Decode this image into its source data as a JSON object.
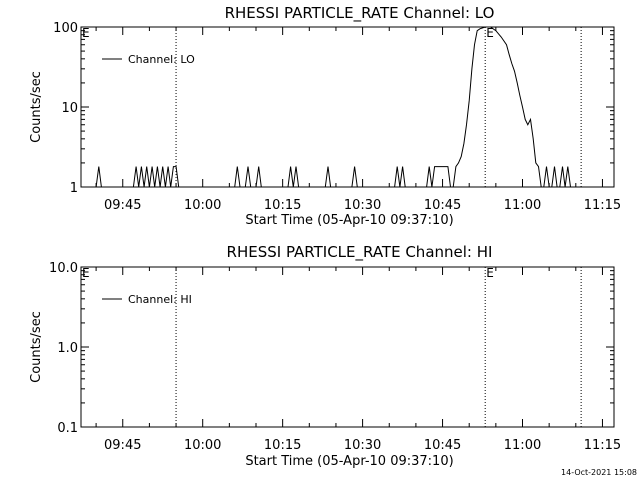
{
  "footer": {
    "generated": "14-Oct-2021 15:08"
  },
  "chart_data": [
    {
      "type": "line",
      "title": "RHESSI PARTICLE_RATE Channel: LO",
      "xlabel": "Start Time (05-Apr-10 09:37:10)",
      "ylabel": "Counts/sec",
      "y_scale": "log",
      "ylim": [
        1,
        100
      ],
      "y_ticks": [
        1,
        10,
        100
      ],
      "y_tick_labels": [
        "1",
        "10",
        "100"
      ],
      "xlim": [
        "09:37:10",
        "11:17:10"
      ],
      "x_ticks": [
        "09:45",
        "10:00",
        "10:15",
        "10:30",
        "10:45",
        "11:00",
        "11:15"
      ],
      "legend": {
        "label": "Channel: LO",
        "position": "top-left"
      },
      "markers": [
        {
          "label": "E",
          "time": "09:37:10",
          "line": false
        },
        {
          "label": "",
          "time": "09:55:00",
          "line": true
        },
        {
          "label": "E",
          "time": "10:53:00",
          "line": true
        },
        {
          "label": "",
          "time": "11:11:00",
          "line": true
        }
      ],
      "series": [
        {
          "x": [
            "09:40:00",
            "09:40:30",
            "09:41:00",
            "09:47:00",
            "09:47:30",
            "09:48:00",
            "09:48:30",
            "09:49:00",
            "09:49:30",
            "09:50:00",
            "09:50:30",
            "09:51:00",
            "09:51:30",
            "09:52:00",
            "09:52:30",
            "09:53:00",
            "09:53:30",
            "09:54:00",
            "09:54:30",
            "09:55:00",
            "09:55:30",
            "10:06:00",
            "10:06:30",
            "10:07:00",
            "10:08:00",
            "10:08:30",
            "10:09:00",
            "10:10:00",
            "10:10:30",
            "10:11:00",
            "10:16:00",
            "10:16:30",
            "10:17:00",
            "10:17:30",
            "10:18:00",
            "10:23:00",
            "10:23:30",
            "10:24:00",
            "10:28:00",
            "10:28:30",
            "10:29:00",
            "10:36:00",
            "10:36:30",
            "10:37:00",
            "10:37:30",
            "10:38:00",
            "10:42:00",
            "10:42:30",
            "10:43:00",
            "10:43:30",
            "10:44:00",
            "10:44:30",
            "10:45:00",
            "10:45:30",
            "10:46:00",
            "10:46:30",
            "10:47:00",
            "10:47:30",
            "10:48:00",
            "10:48:30",
            "10:49:00",
            "10:49:30",
            "10:50:00",
            "10:50:30",
            "10:51:00",
            "10:51:30",
            "10:52:00",
            "10:53:00",
            "10:54:00",
            "10:55:00",
            "10:56:00",
            "10:57:00",
            "10:57:30",
            "10:58:00",
            "10:58:30",
            "10:59:00",
            "10:59:30",
            "11:00:00",
            "11:00:30",
            "11:01:00",
            "11:01:30",
            "11:02:00",
            "11:02:30",
            "11:03:00",
            "11:03:30",
            "11:04:00",
            "11:04:30",
            "11:05:00",
            "11:05:30",
            "11:06:00",
            "11:06:30",
            "11:07:00",
            "11:07:30",
            "11:08:00",
            "11:08:30",
            "11:09:00",
            "11:09:30"
          ],
          "y": [
            1,
            1.8,
            1,
            1,
            1.8,
            1,
            1.8,
            1,
            1.8,
            1,
            1.8,
            1,
            1.8,
            1,
            1.8,
            1,
            1.8,
            1,
            1.8,
            1.8,
            1,
            1,
            1.8,
            1,
            1,
            1.8,
            1,
            1,
            1.8,
            1,
            1,
            1.8,
            1,
            1.8,
            1,
            1,
            1.8,
            1,
            1,
            1.8,
            1,
            1,
            1.8,
            1,
            1.8,
            1,
            1,
            1.8,
            1,
            1.8,
            1.8,
            1.8,
            1.8,
            1.8,
            1.8,
            1,
            1,
            1.8,
            2,
            2.4,
            3.5,
            6,
            12,
            30,
            60,
            90,
            95,
            100,
            100,
            90,
            75,
            60,
            45,
            35,
            28,
            20,
            14,
            10,
            7,
            6,
            7,
            4,
            2,
            1.8,
            1,
            1,
            1.8,
            1,
            1,
            1.8,
            1,
            1,
            1.8,
            1,
            1.8,
            1,
            1
          ]
        }
      ]
    },
    {
      "type": "line",
      "title": "RHESSI PARTICLE_RATE Channel: HI",
      "xlabel": "Start Time (05-Apr-10 09:37:10)",
      "ylabel": "Counts/sec",
      "y_scale": "log",
      "ylim": [
        0.1,
        10
      ],
      "y_ticks": [
        0.1,
        1,
        10
      ],
      "y_tick_labels": [
        "0.1",
        "1.0",
        "10.0"
      ],
      "xlim": [
        "09:37:10",
        "11:17:10"
      ],
      "x_ticks": [
        "09:45",
        "10:00",
        "10:15",
        "10:30",
        "10:45",
        "11:00",
        "11:15"
      ],
      "legend": {
        "label": "Channel: HI",
        "position": "top-left"
      },
      "markers": [
        {
          "label": "E",
          "time": "09:37:10",
          "line": false
        },
        {
          "label": "",
          "time": "09:55:00",
          "line": true
        },
        {
          "label": "E",
          "time": "10:53:00",
          "line": true
        },
        {
          "label": "",
          "time": "11:11:00",
          "line": true
        }
      ],
      "series": [
        {
          "x": [],
          "y": []
        }
      ]
    }
  ]
}
